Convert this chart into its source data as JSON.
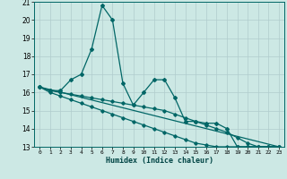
{
  "xlabel": "Humidex (Indice chaleur)",
  "ylabel": "",
  "xlim": [
    -0.5,
    23.5
  ],
  "ylim": [
    13,
    21
  ],
  "yticks": [
    13,
    14,
    15,
    16,
    17,
    18,
    19,
    20,
    21
  ],
  "xticks": [
    0,
    1,
    2,
    3,
    4,
    5,
    6,
    7,
    8,
    9,
    10,
    11,
    12,
    13,
    14,
    15,
    16,
    17,
    18,
    19,
    20,
    21,
    22,
    23
  ],
  "bg_color": "#cce8e4",
  "grid_color": "#b0cccc",
  "line_color": "#006666",
  "line1_x": [
    0,
    1,
    2,
    3,
    4,
    5,
    6,
    7,
    8,
    9,
    10,
    11,
    12,
    13,
    14,
    15,
    16,
    17,
    18,
    19,
    20,
    21,
    22,
    23
  ],
  "line1_y": [
    16.3,
    16.1,
    16.1,
    16.7,
    17.0,
    18.4,
    20.8,
    20.0,
    16.5,
    15.3,
    16.0,
    16.7,
    16.7,
    15.7,
    14.4,
    14.4,
    14.3,
    14.3,
    14.0,
    13.0,
    13.0,
    13.0,
    13.0,
    13.0
  ],
  "line2_x": [
    0,
    1,
    2,
    3,
    4,
    5,
    6,
    7,
    8,
    9,
    10,
    11,
    12,
    13,
    14,
    15,
    16,
    17,
    18,
    19,
    20,
    21,
    22,
    23
  ],
  "line2_y": [
    16.3,
    16.1,
    16.0,
    15.9,
    15.8,
    15.7,
    15.6,
    15.5,
    15.4,
    15.3,
    15.2,
    15.1,
    15.0,
    14.8,
    14.6,
    14.4,
    14.2,
    14.0,
    13.8,
    13.5,
    13.2,
    13.0,
    13.0,
    13.0
  ],
  "line3_x": [
    0,
    1,
    2,
    3,
    4,
    5,
    6,
    7,
    8,
    9,
    10,
    11,
    12,
    13,
    14,
    15,
    16,
    17,
    18,
    19,
    20,
    21,
    22,
    23
  ],
  "line3_y": [
    16.3,
    16.0,
    15.8,
    15.6,
    15.4,
    15.2,
    15.0,
    14.8,
    14.6,
    14.4,
    14.2,
    14.0,
    13.8,
    13.6,
    13.4,
    13.2,
    13.1,
    13.0,
    13.0,
    13.0,
    13.0,
    13.0,
    13.0,
    13.0
  ],
  "line4_x": [
    0,
    23
  ],
  "line4_y": [
    16.3,
    13.0
  ]
}
